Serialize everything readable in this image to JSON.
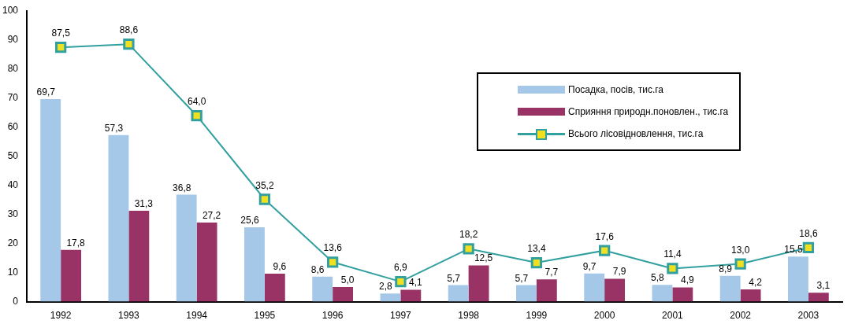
{
  "chart_data": {
    "type": "bar",
    "categories": [
      "1992",
      "1993",
      "1994",
      "1995",
      "1996",
      "1997",
      "1998",
      "1999",
      "2000",
      "2001",
      "2002",
      "2003"
    ],
    "series": [
      {
        "name": "Посадка, посів, тис.га",
        "color": "#a6c8e8",
        "values": [
          69.7,
          57.3,
          36.8,
          25.6,
          8.6,
          2.8,
          5.7,
          5.7,
          9.7,
          5.8,
          8.9,
          15.5
        ],
        "value_labels": [
          "69,7",
          "57,3",
          "36,8",
          "25,6",
          "8,6",
          "2,8",
          "5,7",
          "5,7",
          "9,7",
          "5,8",
          "8,9",
          "15,5"
        ]
      },
      {
        "name": "Сприяння природн.поновлен., тис.га",
        "color": "#993366",
        "values": [
          17.8,
          31.3,
          27.2,
          9.6,
          5.0,
          4.1,
          12.5,
          7.7,
          7.9,
          4.9,
          4.2,
          3.1
        ],
        "value_labels": [
          "17,8",
          "31,3",
          "27,2",
          "9,6",
          "5,0",
          "4,1",
          "12,5",
          "7,7",
          "7,9",
          "4,9",
          "4,2",
          "3,1"
        ]
      },
      {
        "name": "Всього лісовідновлення, тис.га",
        "type": "line",
        "color": "#33a0a0",
        "marker": "square",
        "values": [
          87.5,
          88.6,
          64.0,
          35.2,
          13.6,
          6.9,
          18.2,
          13.4,
          17.6,
          11.4,
          13.0,
          18.6
        ],
        "value_labels": [
          "87,5",
          "88,6",
          "64,0",
          "35,2",
          "13,6",
          "6,9",
          "18,2",
          "13,4",
          "17,6",
          "11,4",
          "13,0",
          "18,6"
        ]
      }
    ],
    "ylim": [
      0,
      100
    ],
    "yticks": [
      0,
      10,
      20,
      30,
      40,
      50,
      60,
      70,
      80,
      90,
      100
    ],
    "grid": false,
    "legend": "top right"
  }
}
